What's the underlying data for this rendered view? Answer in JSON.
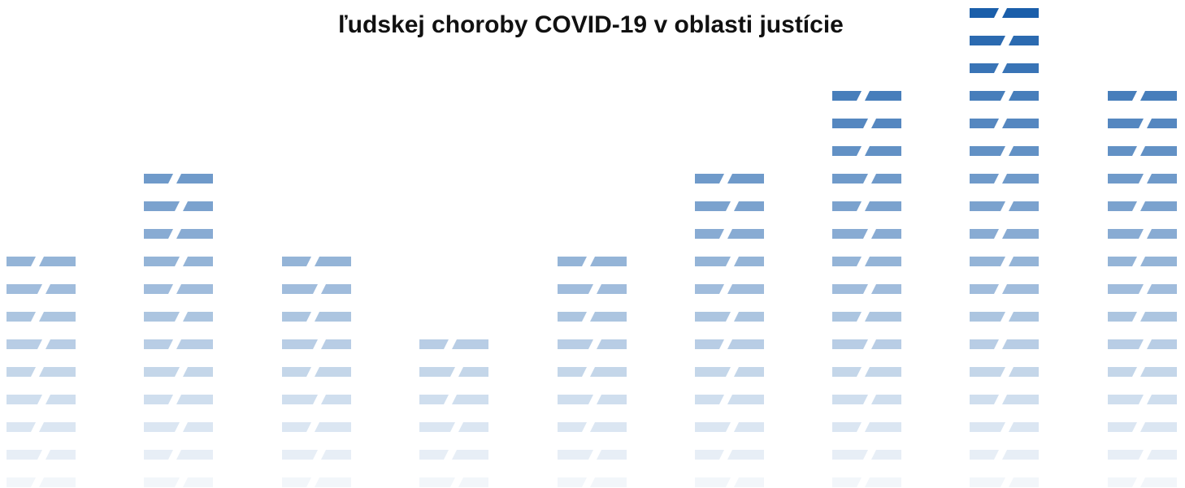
{
  "header": {
    "title": "ľudskej choroby COVID-19 v oblasti justície"
  }
}
